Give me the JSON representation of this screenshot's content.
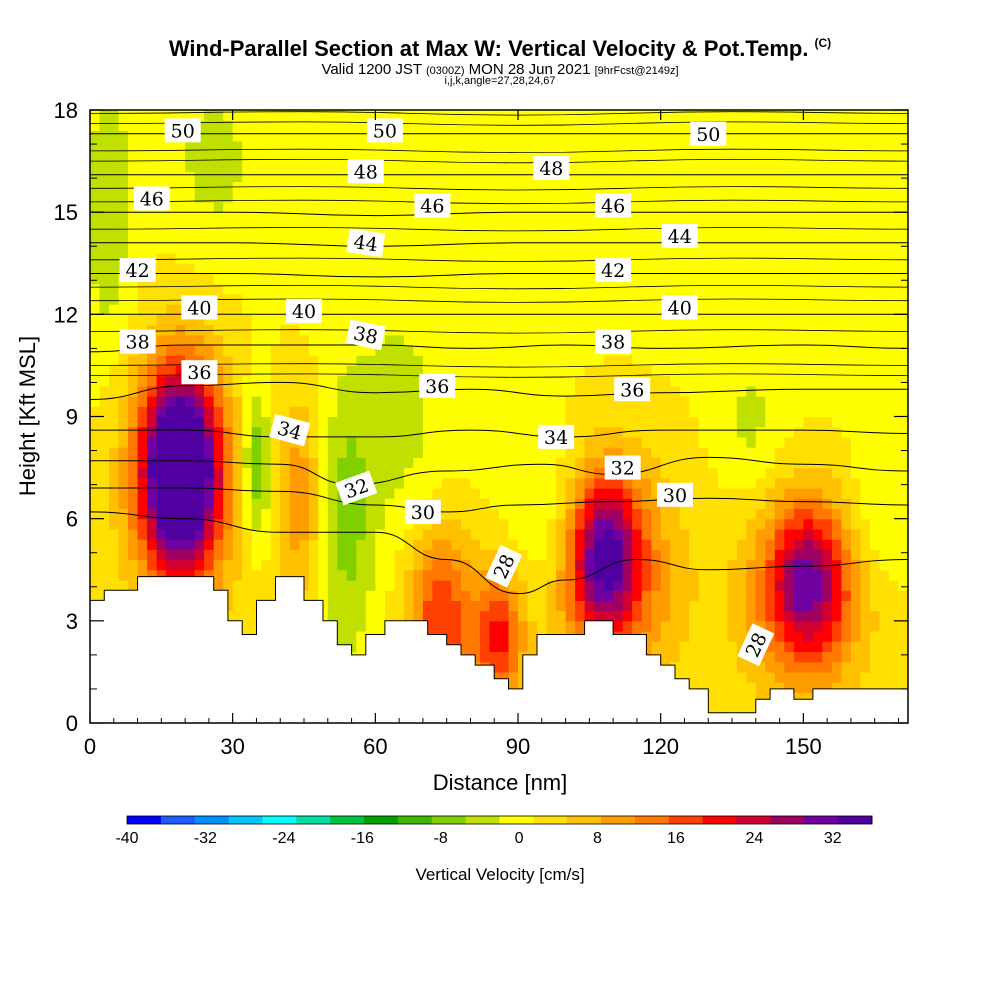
{
  "chart_data": {
    "type": "heatmap",
    "title": "Wind-Parallel Section at Max W: Vertical Velocity & Pot.Temp.",
    "title_mark": "(C)",
    "subtitle": {
      "valid": "Valid 1200 JST",
      "utc": "(0300Z)",
      "date": "MON 28 Jun 2021",
      "fcst": "[9hrFcst@2149z]"
    },
    "subsubtitle": "i,j,k,angle=27,28,24,67",
    "xlabel": "Distance [nm]",
    "ylabel": "Height [Kft MSL]",
    "xlim": [
      0,
      172
    ],
    "ylim": [
      0,
      18
    ],
    "xticks": [
      0,
      30,
      60,
      90,
      120,
      150
    ],
    "yticks": [
      0,
      3,
      6,
      9,
      12,
      15,
      18
    ],
    "xtick_labels": [
      "0",
      "30",
      "60",
      "90",
      "120",
      "150"
    ],
    "ytick_labels": [
      "0",
      "3",
      "6",
      "9",
      "12",
      "15",
      "18"
    ],
    "colorbar": {
      "label": "Vertical Velocity [cm/s]",
      "range": [
        -40,
        36
      ],
      "ticks": [
        "-40",
        "-32",
        "-24",
        "-16",
        "-8",
        "0",
        "8",
        "16",
        "24",
        "32"
      ],
      "colors": [
        "#0000ff",
        "#1c5cff",
        "#0090ff",
        "#00c8ff",
        "#00ffff",
        "#00e0a0",
        "#00c040",
        "#00a000",
        "#40b800",
        "#80d000",
        "#c0e000",
        "#ffff00",
        "#ffe000",
        "#ffc000",
        "#ff9c00",
        "#ff7800",
        "#ff4000",
        "#ff0000",
        "#d00030",
        "#a00060",
        "#7000a0",
        "#5000a0"
      ]
    },
    "terrain_profile": [
      [
        0,
        3.6
      ],
      [
        3,
        3.6
      ],
      [
        3,
        3.9
      ],
      [
        10,
        3.9
      ],
      [
        10,
        4.3
      ],
      [
        26,
        4.3
      ],
      [
        26,
        3.9
      ],
      [
        29,
        3.9
      ],
      [
        29,
        3.0
      ],
      [
        32,
        3.0
      ],
      [
        32,
        2.6
      ],
      [
        35,
        2.6
      ],
      [
        35,
        3.6
      ],
      [
        39,
        3.6
      ],
      [
        39,
        4.3
      ],
      [
        45,
        4.3
      ],
      [
        45,
        3.6
      ],
      [
        49,
        3.6
      ],
      [
        49,
        3.0
      ],
      [
        52,
        3.0
      ],
      [
        52,
        2.3
      ],
      [
        55,
        2.3
      ],
      [
        55,
        2.0
      ],
      [
        58,
        2.0
      ],
      [
        58,
        2.6
      ],
      [
        62,
        2.6
      ],
      [
        62,
        3.0
      ],
      [
        71,
        3.0
      ],
      [
        71,
        2.6
      ],
      [
        75,
        2.6
      ],
      [
        75,
        2.3
      ],
      [
        78,
        2.3
      ],
      [
        78,
        2.0
      ],
      [
        81,
        2.0
      ],
      [
        81,
        1.7
      ],
      [
        85,
        1.7
      ],
      [
        85,
        1.3
      ],
      [
        88,
        1.3
      ],
      [
        88,
        1.0
      ],
      [
        91,
        1.0
      ],
      [
        91,
        2.0
      ],
      [
        94,
        2.0
      ],
      [
        94,
        2.6
      ],
      [
        104,
        2.6
      ],
      [
        104,
        3.0
      ],
      [
        110,
        3.0
      ],
      [
        110,
        2.6
      ],
      [
        117,
        2.6
      ],
      [
        117,
        2.0
      ],
      [
        120,
        2.0
      ],
      [
        120,
        1.7
      ],
      [
        123,
        1.7
      ],
      [
        123,
        1.3
      ],
      [
        126,
        1.3
      ],
      [
        126,
        1.0
      ],
      [
        130,
        1.0
      ],
      [
        130,
        0.3
      ],
      [
        140,
        0.3
      ],
      [
        140,
        0.7
      ],
      [
        143,
        0.7
      ],
      [
        143,
        1.0
      ],
      [
        148,
        1.0
      ],
      [
        148,
        0.7
      ],
      [
        152,
        0.7
      ],
      [
        152,
        1.0
      ],
      [
        172,
        1.0
      ]
    ],
    "w_features": [
      {
        "x": 19,
        "y": 7.5,
        "w": 36,
        "rx": 7,
        "ry": 2.4
      },
      {
        "x": 19,
        "y": 7.0,
        "w": 20,
        "rx": 11,
        "ry": 4.0
      },
      {
        "x": 108,
        "y": 5.0,
        "w": 24,
        "rx": 7,
        "ry": 2.2
      },
      {
        "x": 110,
        "y": 4.2,
        "w": 14,
        "rx": 14,
        "ry": 3.5
      },
      {
        "x": 151,
        "y": 4.3,
        "w": 20,
        "rx": 8,
        "ry": 2.2
      },
      {
        "x": 150,
        "y": 3.4,
        "w": 12,
        "rx": 14,
        "ry": 3.0
      },
      {
        "x": 74,
        "y": 3.0,
        "w": 18,
        "rx": 7,
        "ry": 2.5
      },
      {
        "x": 86,
        "y": 2.5,
        "w": 18,
        "rx": 5,
        "ry": 2.0
      },
      {
        "x": 44,
        "y": 6.5,
        "w": 10,
        "rx": 5,
        "ry": 3.0
      },
      {
        "x": 35,
        "y": 7.6,
        "w": -12,
        "rx": 3,
        "ry": 2.2
      },
      {
        "x": 54,
        "y": 6.0,
        "w": -8,
        "rx": 6,
        "ry": 4.0
      },
      {
        "x": 98,
        "y": 5.8,
        "w": -6,
        "rx": 9,
        "ry": 2.5
      },
      {
        "x": 65,
        "y": 9.2,
        "w": -5,
        "rx": 8,
        "ry": 3.0
      },
      {
        "x": 4,
        "y": 15.0,
        "w": -6,
        "rx": 5,
        "ry": 4.0
      },
      {
        "x": 26,
        "y": 16.5,
        "w": -4,
        "rx": 10,
        "ry": 3.0
      },
      {
        "x": 139,
        "y": 8.8,
        "w": -4,
        "rx": 6,
        "ry": 2.0
      },
      {
        "x": 166,
        "y": 6.0,
        "w": -4,
        "rx": 7,
        "ry": 2.0
      }
    ],
    "theta_levels": [
      {
        "value": 28,
        "heights": [
          [
            0,
            6.2
          ],
          [
            20,
            6.0
          ],
          [
            40,
            5.6
          ],
          [
            60,
            5.6
          ],
          [
            75,
            4.8
          ],
          [
            90,
            3.8
          ],
          [
            100,
            4.2
          ],
          [
            115,
            4.8
          ],
          [
            130,
            4.5
          ],
          [
            150,
            4.6
          ],
          [
            172,
            4.8
          ]
        ]
      },
      {
        "value": 30,
        "heights": [
          [
            0,
            6.9
          ],
          [
            20,
            6.9
          ],
          [
            40,
            6.8
          ],
          [
            60,
            6.4
          ],
          [
            75,
            6.2
          ],
          [
            90,
            6.4
          ],
          [
            110,
            6.5
          ],
          [
            130,
            6.6
          ],
          [
            150,
            6.5
          ],
          [
            172,
            6.4
          ]
        ]
      },
      {
        "value": 32,
        "heights": [
          [
            0,
            7.7
          ],
          [
            20,
            7.7
          ],
          [
            40,
            7.6
          ],
          [
            55,
            7.0
          ],
          [
            75,
            7.4
          ],
          [
            95,
            7.6
          ],
          [
            110,
            7.3
          ],
          [
            130,
            7.8
          ],
          [
            150,
            7.6
          ],
          [
            172,
            7.4
          ]
        ]
      },
      {
        "value": 34,
        "heights": [
          [
            0,
            8.6
          ],
          [
            20,
            8.6
          ],
          [
            40,
            8.4
          ],
          [
            60,
            8.4
          ],
          [
            80,
            8.6
          ],
          [
            100,
            8.4
          ],
          [
            120,
            8.6
          ],
          [
            150,
            8.6
          ],
          [
            172,
            8.5
          ]
        ]
      },
      {
        "value": 36,
        "heights": [
          [
            0,
            9.5
          ],
          [
            20,
            9.9
          ],
          [
            40,
            10.0
          ],
          [
            60,
            9.7
          ],
          [
            80,
            9.8
          ],
          [
            100,
            9.6
          ],
          [
            120,
            9.7
          ],
          [
            150,
            9.8
          ],
          [
            172,
            9.8
          ]
        ]
      },
      {
        "value": 38,
        "heights": [
          [
            0,
            10.9
          ],
          [
            20,
            11.1
          ],
          [
            40,
            11.1
          ],
          [
            60,
            11.1
          ],
          [
            80,
            11.0
          ],
          [
            100,
            11.1
          ],
          [
            120,
            11.0
          ],
          [
            150,
            11.1
          ],
          [
            172,
            11.0
          ]
        ]
      },
      {
        "value": 40,
        "heights": [
          [
            0,
            12.0
          ],
          [
            30,
            12.0
          ],
          [
            60,
            12.0
          ],
          [
            90,
            12.0
          ],
          [
            120,
            12.0
          ],
          [
            150,
            12.0
          ],
          [
            172,
            12.0
          ]
        ]
      },
      {
        "value": 42,
        "heights": [
          [
            0,
            13.2
          ],
          [
            30,
            13.2
          ],
          [
            60,
            13.1
          ],
          [
            90,
            13.2
          ],
          [
            120,
            13.2
          ],
          [
            150,
            13.2
          ],
          [
            172,
            13.2
          ]
        ]
      },
      {
        "value": 44,
        "heights": [
          [
            0,
            14.1
          ],
          [
            30,
            14.1
          ],
          [
            60,
            14.0
          ],
          [
            90,
            14.1
          ],
          [
            120,
            14.1
          ],
          [
            150,
            14.1
          ],
          [
            172,
            14.1
          ]
        ]
      },
      {
        "value": 46,
        "heights": [
          [
            0,
            15.0
          ],
          [
            30,
            15.0
          ],
          [
            60,
            14.9
          ],
          [
            90,
            15.0
          ],
          [
            120,
            15.0
          ],
          [
            150,
            15.0
          ],
          [
            172,
            15.0
          ]
        ]
      },
      {
        "value": 48,
        "heights": [
          [
            0,
            16.1
          ],
          [
            30,
            16.1
          ],
          [
            60,
            16.1
          ],
          [
            90,
            16.1
          ],
          [
            120,
            16.1
          ],
          [
            150,
            16.1
          ],
          [
            172,
            16.1
          ]
        ]
      },
      {
        "value": 50,
        "heights": [
          [
            0,
            17.3
          ],
          [
            30,
            17.3
          ],
          [
            60,
            17.3
          ],
          [
            90,
            17.3
          ],
          [
            120,
            17.3
          ],
          [
            150,
            17.3
          ],
          [
            172,
            17.3
          ]
        ]
      }
    ],
    "extra_theta_lines": [
      10.2,
      10.5,
      11.5,
      12.4,
      12.8,
      13.6,
      14.5,
      15.3,
      15.7,
      16.5,
      16.8,
      17.6,
      17.9
    ],
    "contour_labels": [
      {
        "text": "50",
        "x": 19.5,
        "y": 17.4
      },
      {
        "text": "50",
        "x": 62,
        "y": 17.4
      },
      {
        "text": "50",
        "x": 130,
        "y": 17.3
      },
      {
        "text": "48",
        "x": 58,
        "y": 16.2
      },
      {
        "text": "48",
        "x": 97,
        "y": 16.3
      },
      {
        "text": "46",
        "x": 13,
        "y": 15.4
      },
      {
        "text": "46",
        "x": 72,
        "y": 15.2
      },
      {
        "text": "46",
        "x": 110,
        "y": 15.2
      },
      {
        "text": "44",
        "x": 58,
        "y": 14.1
      },
      {
        "text": "44",
        "x": 124,
        "y": 14.3
      },
      {
        "text": "42",
        "x": 10,
        "y": 13.3
      },
      {
        "text": "42",
        "x": 110,
        "y": 13.3
      },
      {
        "text": "40",
        "x": 23,
        "y": 12.2
      },
      {
        "text": "40",
        "x": 45,
        "y": 12.1
      },
      {
        "text": "40",
        "x": 124,
        "y": 12.2
      },
      {
        "text": "38",
        "x": 10,
        "y": 11.2
      },
      {
        "text": "38",
        "x": 58,
        "y": 11.4
      },
      {
        "text": "38",
        "x": 110,
        "y": 11.2
      },
      {
        "text": "36",
        "x": 23,
        "y": 10.3
      },
      {
        "text": "36",
        "x": 73,
        "y": 9.9
      },
      {
        "text": "36",
        "x": 114,
        "y": 9.8
      },
      {
        "text": "34",
        "x": 42,
        "y": 8.6
      },
      {
        "text": "34",
        "x": 98,
        "y": 8.4
      },
      {
        "text": "32",
        "x": 56,
        "y": 6.9
      },
      {
        "text": "32",
        "x": 112,
        "y": 7.5
      },
      {
        "text": "30",
        "x": 70,
        "y": 6.2
      },
      {
        "text": "30",
        "x": 123,
        "y": 6.7
      },
      {
        "text": "28",
        "x": 87,
        "y": 4.6
      },
      {
        "text": "28",
        "x": 140,
        "y": 2.3
      }
    ],
    "rotated_label_angles": {
      "34": 15,
      "32": -20,
      "28": -65,
      "38": 12,
      "44": 8
    }
  }
}
